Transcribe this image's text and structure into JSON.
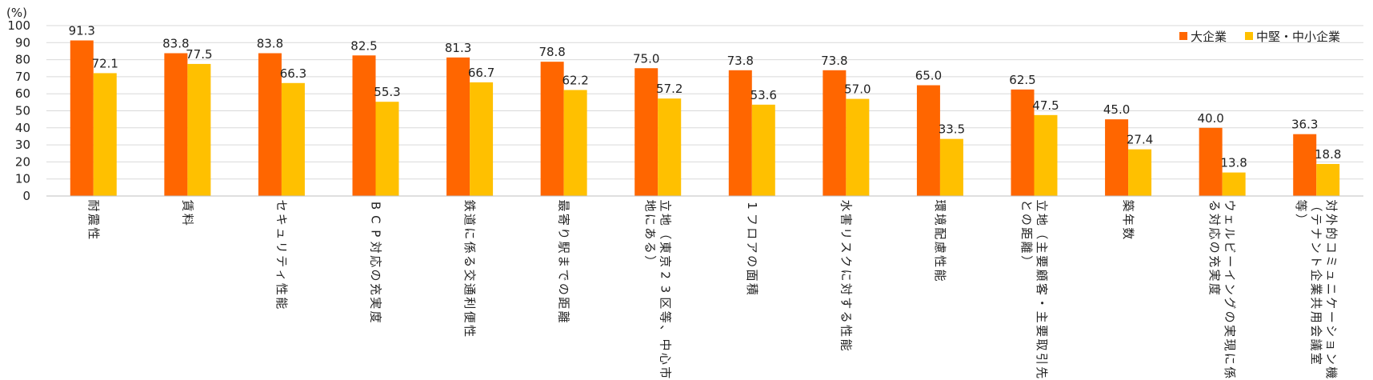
{
  "chart_data": {
    "type": "bar",
    "unit_label": "(%)",
    "ylim": [
      0,
      100
    ],
    "yticks": [
      "0",
      "10",
      "20",
      "30",
      "40",
      "50",
      "60",
      "70",
      "80",
      "90",
      "100"
    ],
    "grid": true,
    "legend_position": "top-right",
    "categories": [
      "耐震性",
      "賃料",
      "セキュリティ性能",
      "BCP対応の充実度",
      "鉄道に係る交通利便性",
      "最寄り駅までの距離",
      "立地（東京23区等、中心市街地にある）",
      "1フロアの面積",
      "水害リスクに対する性能",
      "環境配慮性能",
      "立地（主要顧客・主要取引先との距離）",
      "築年数",
      "ウェルビーイングの実現に係る対応の充実度",
      "対外的コミュニケーション機能（テナント企業共用会議室等）"
    ],
    "category_lines": [
      [
        "耐震性"
      ],
      [
        "賃料"
      ],
      [
        "セキュリティ性能"
      ],
      [
        "BCP対応の充実度"
      ],
      [
        "鉄道に係る交通利便性"
      ],
      [
        "最寄り駅までの距離"
      ],
      [
        "立地（東京23区等、中心市街",
        "地にある）"
      ],
      [
        "1フロアの面積"
      ],
      [
        "水害リスクに対する性能"
      ],
      [
        "環境配慮性能"
      ],
      [
        "立地（主要顧客・主要取引先",
        "との距離）"
      ],
      [
        "築年数"
      ],
      [
        "ウェルビーイングの実現に係",
        "る対応の充実度"
      ],
      [
        "対外的コミュニケーション機能",
        "（テナント企業共用会議室",
        "等）"
      ]
    ],
    "series": [
      {
        "name": "大企業",
        "color": "#FF6600",
        "values": [
          91.3,
          83.8,
          83.8,
          82.5,
          81.3,
          78.8,
          75.0,
          73.8,
          73.8,
          65.0,
          62.5,
          45.0,
          40.0,
          36.3
        ],
        "labels": [
          "91.3",
          "83.8",
          "83.8",
          "82.5",
          "81.3",
          "78.8",
          "75.0",
          "73.8",
          "73.8",
          "65.0",
          "62.5",
          "45.0",
          "40.0",
          "36.3"
        ]
      },
      {
        "name": "中堅・中小企業",
        "color": "#FFC000",
        "values": [
          72.1,
          77.5,
          66.3,
          55.3,
          66.7,
          62.2,
          57.2,
          53.6,
          57.0,
          33.5,
          47.5,
          27.4,
          13.8,
          18.8
        ],
        "labels": [
          "72.1",
          "77.5",
          "66.3",
          "55.3",
          "66.7",
          "62.2",
          "57.2",
          "53.6",
          "57.0",
          "33.5",
          "47.5",
          "27.4",
          "13.8",
          "18.8"
        ]
      }
    ]
  }
}
